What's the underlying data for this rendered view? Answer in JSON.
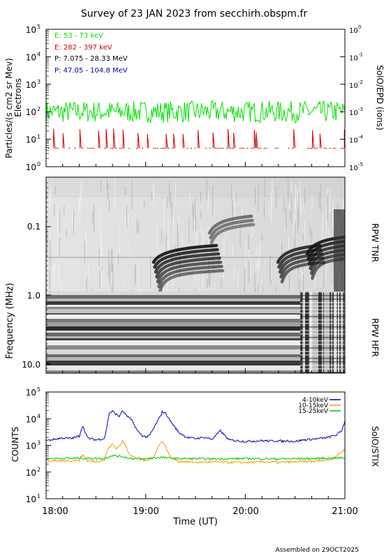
{
  "title": "Survey of 23 JAN 2023 from secchirh.obspm.fr",
  "footer": "Assembled on 29OCT2025",
  "colors": {
    "green": "#00e000",
    "red": "#d40000",
    "black": "#000000",
    "blue": "#0000b4",
    "orange": "#ff9a00",
    "stix_green": "#00c800"
  },
  "chart_data": [
    {
      "type": "line",
      "panel": "epd",
      "ylabel_left": "Particles/(s cm2 sr Mev)",
      "ylabel_left2": "Electrons",
      "ylabel_right": "SolO/EPD (ions)",
      "yscale": "log",
      "ylim": [
        1,
        100000
      ],
      "ylim_right": [
        1e-05,
        1000000000
      ],
      "y_ticks": [
        {
          "base": "10",
          "exp": "0"
        },
        {
          "base": "10",
          "exp": "1"
        },
        {
          "base": "10",
          "exp": "2"
        },
        {
          "base": "10",
          "exp": "3"
        },
        {
          "base": "10",
          "exp": "4"
        },
        {
          "base": "10",
          "exp": "5"
        }
      ],
      "y_ticks_right": [
        {
          "base": "10",
          "exp": "-5"
        },
        {
          "base": "10",
          "exp": "-4"
        },
        {
          "base": "10",
          "exp": "-3"
        },
        {
          "base": "10",
          "exp": "-2"
        },
        {
          "base": "10",
          "exp": "-1"
        },
        {
          "base": "10",
          "exp": "0"
        }
      ],
      "legend": [
        {
          "label": "E: 53 - 73 keV",
          "color": "#00e000"
        },
        {
          "label": "E: 282 - 397 keV",
          "color": "#d40000"
        },
        {
          "label": "P: 7.075 - 28.33 MeV",
          "color": "#000000"
        },
        {
          "label": "P: 47.05 - 104.8 MeV",
          "color": "#0000b4"
        }
      ],
      "series": [
        {
          "name": "E: 53 - 73 keV",
          "color": "#00e000",
          "typical": 100
        },
        {
          "name": "E: 282 - 397 keV",
          "color": "#d40000",
          "typical": 5
        }
      ]
    },
    {
      "type": "heatmap",
      "panel": "rpw",
      "ylabel": "Frequency (MHz)",
      "label_tnr": "RPW TNR",
      "label_hfr": "RPW HFR",
      "y_ticks": [
        "0.1",
        "1.0",
        "10.0"
      ]
    },
    {
      "type": "line",
      "panel": "stix",
      "ylabel": "COUNTS",
      "ylabel_right": "SolO/STIX",
      "yscale": "log",
      "ylim": [
        10,
        100000
      ],
      "y_ticks": [
        {
          "base": "10",
          "exp": "1"
        },
        {
          "base": "10",
          "exp": "2"
        },
        {
          "base": "10",
          "exp": "3"
        },
        {
          "base": "10",
          "exp": "4"
        },
        {
          "base": "10",
          "exp": "5"
        }
      ],
      "legend": [
        {
          "label": "4-10keV",
          "color": "#0000b4"
        },
        {
          "label": "10-15keV",
          "color": "#ff9a00"
        },
        {
          "label": "15-25keV",
          "color": "#00c800"
        }
      ],
      "series": [
        {
          "name": "4-10keV",
          "color": "#0000b4",
          "x": [
            0,
            5,
            10,
            15,
            20,
            22,
            25,
            30,
            35,
            36,
            38,
            40,
            42,
            44,
            45,
            46,
            48,
            50,
            52,
            55,
            58,
            60,
            62,
            65,
            66,
            68,
            70,
            72,
            75,
            80,
            85,
            90,
            95,
            100,
            105,
            110,
            115,
            120,
            125,
            130,
            135,
            140,
            143,
            145,
            147,
            150,
            155,
            160,
            165,
            170,
            175,
            178,
            180
          ],
          "y": [
            1500,
            1700,
            1900,
            1800,
            2200,
            5500,
            1900,
            1600,
            1800,
            3000,
            16000,
            19000,
            15000,
            12000,
            16000,
            20000,
            14000,
            11000,
            8000,
            3500,
            2300,
            2100,
            2200,
            4500,
            6000,
            10000,
            18000,
            16000,
            8000,
            3000,
            2000,
            1800,
            2000,
            1700,
            3500,
            1600,
            1500,
            1400,
            1450,
            1500,
            1450,
            1500,
            1400,
            1500,
            1450,
            1400,
            1600,
            1700,
            1800,
            2000,
            2500,
            3500,
            8000
          ]
        },
        {
          "name": "10-15keV",
          "color": "#ff9a00",
          "x": [
            0,
            10,
            20,
            22,
            25,
            30,
            35,
            37,
            40,
            42,
            45,
            46,
            48,
            50,
            55,
            60,
            65,
            68,
            70,
            72,
            75,
            80,
            90,
            100,
            110,
            120,
            130,
            140,
            150,
            160,
            170,
            175,
            180
          ],
          "y": [
            250,
            260,
            280,
            450,
            260,
            250,
            280,
            700,
            1100,
            750,
            1100,
            1500,
            900,
            500,
            300,
            260,
            400,
            1000,
            1500,
            900,
            350,
            250,
            230,
            240,
            230,
            230,
            240,
            230,
            240,
            250,
            280,
            400,
            700
          ]
        },
        {
          "name": "15-25keV",
          "color": "#00c800",
          "x": [
            0,
            20,
            35,
            40,
            46,
            50,
            60,
            70,
            72,
            80,
            100,
            120,
            140,
            160,
            180
          ],
          "y": [
            320,
            330,
            320,
            420,
            380,
            330,
            310,
            360,
            340,
            320,
            310,
            320,
            310,
            320,
            340
          ]
        }
      ]
    }
  ],
  "x_axis": {
    "label": "Time (UT)",
    "ticks": [
      "18:00",
      "19:00",
      "20:00",
      "21:00"
    ]
  }
}
